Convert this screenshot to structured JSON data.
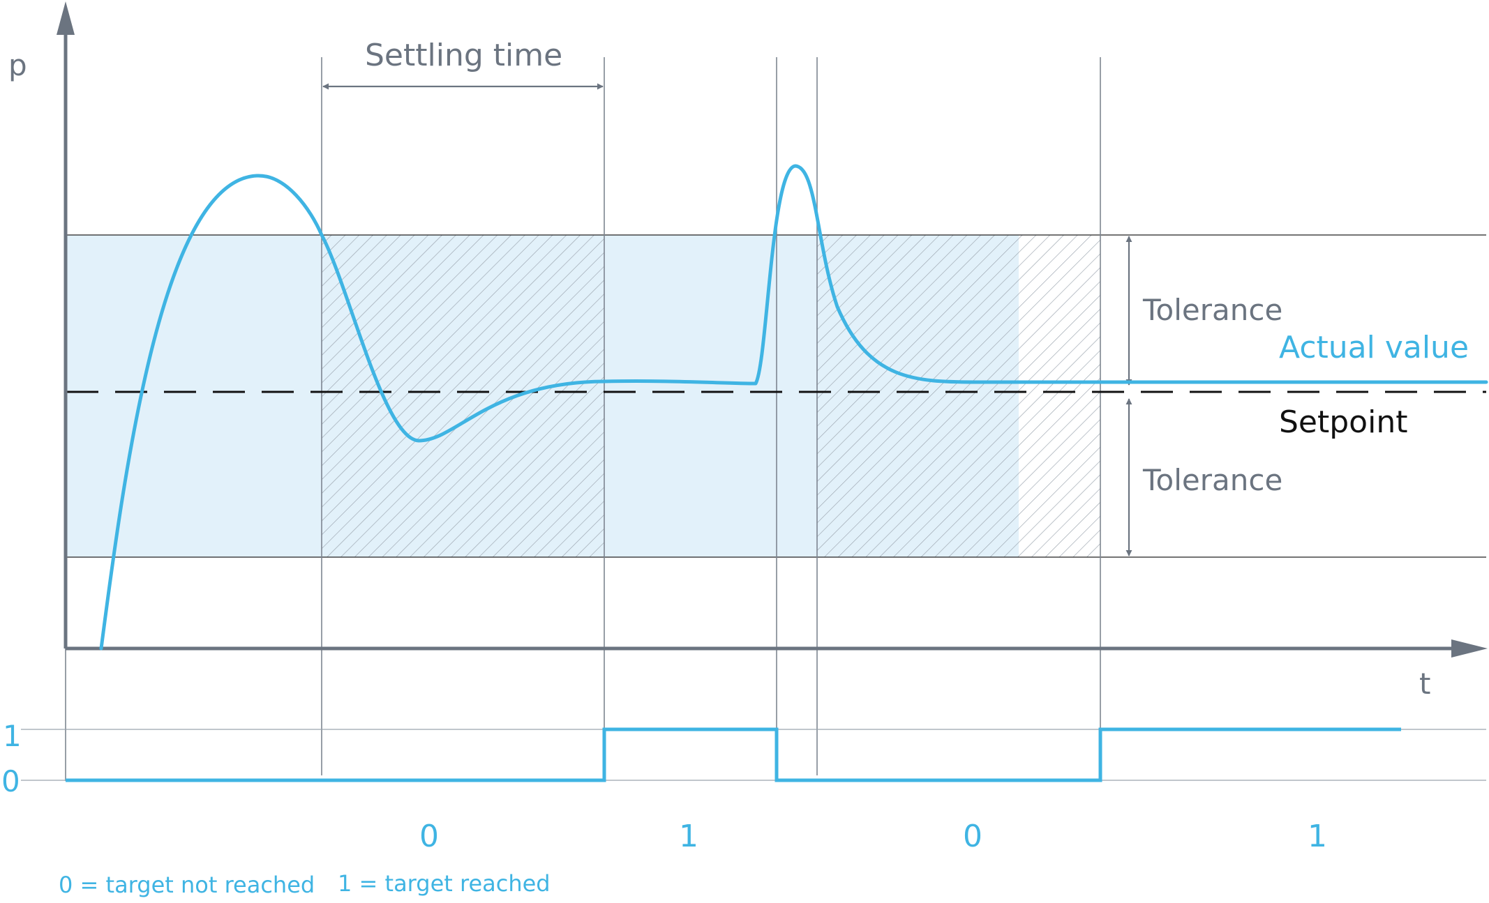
{
  "axes": {
    "y_label": "p",
    "x_label": "t"
  },
  "annotations": {
    "settling_time": "Settling time",
    "tolerance_upper": "Tolerance",
    "tolerance_lower": "Tolerance",
    "actual_value": "Actual value",
    "setpoint": "Setpoint"
  },
  "signal": {
    "level_high": "1",
    "level_low": "0",
    "segments": [
      "0",
      "1",
      "0",
      "1"
    ]
  },
  "legend": {
    "zero": "0 = target not reached",
    "one": "1 = target reached"
  },
  "colors": {
    "curve": "#3fb4e3",
    "tolerance_band": "#e2f1fa",
    "hatch": "#9aa3ad",
    "axis": "#6b7480",
    "setpoint": "#111111"
  }
}
